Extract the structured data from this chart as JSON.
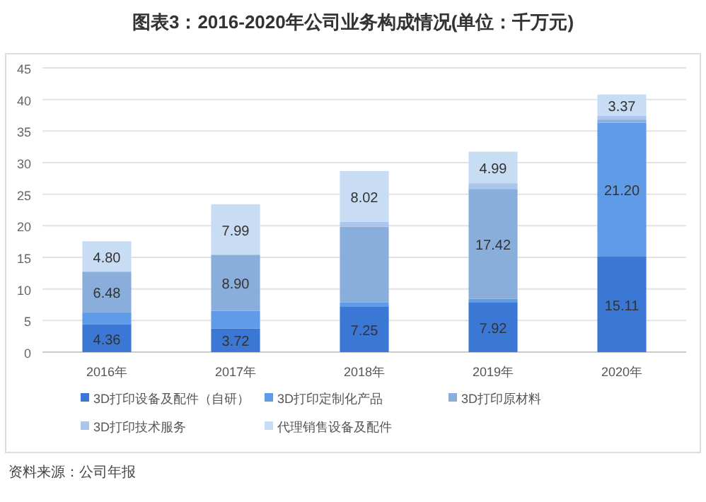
{
  "chart_data": {
    "type": "bar",
    "title": "图表3：2016-2020年公司业务构成情况(单位：千万元)",
    "categories": [
      "2016年",
      "2017年",
      "2018年",
      "2019年",
      "2020年"
    ],
    "stacked": true,
    "ylim": [
      0,
      45
    ],
    "yticks": [
      0,
      5,
      10,
      15,
      20,
      25,
      30,
      35,
      40,
      45
    ],
    "grid": "y",
    "legend": "bottom",
    "annotations": [
      "资料来源：公司年报"
    ],
    "series": [
      {
        "name": "3D打印设备及配件（自研）",
        "color": "#3b78d6",
        "values": [
          4.36,
          3.72,
          7.25,
          7.92,
          15.11
        ],
        "value_labels": [
          "4.36",
          "3.72",
          "7.25",
          "7.92",
          "15.11"
        ]
      },
      {
        "name": "3D打印定制化产品",
        "color": "#5f9be6",
        "values": [
          1.9,
          2.8,
          0.6,
          0.5,
          21.2
        ],
        "value_labels": [
          null,
          null,
          null,
          null,
          "21.20"
        ]
      },
      {
        "name": "3D打印原材料",
        "color": "#8aaedc",
        "values": [
          6.48,
          8.9,
          12.0,
          17.42,
          0.5
        ],
        "value_labels": [
          "6.48",
          "8.90",
          null,
          "17.42",
          null
        ]
      },
      {
        "name": "3D打印技术服务",
        "color": "#abc6ea",
        "values": [
          null,
          null,
          0.8,
          0.9,
          0.6
        ],
        "value_labels": [
          null,
          null,
          null,
          null,
          null
        ]
      },
      {
        "name": "代理销售设备及配件",
        "color": "#c8dcf4",
        "values": [
          4.8,
          7.99,
          8.02,
          4.99,
          3.37
        ],
        "value_labels": [
          "4.80",
          "7.99",
          "8.02",
          "4.99",
          "3.37"
        ]
      }
    ]
  }
}
